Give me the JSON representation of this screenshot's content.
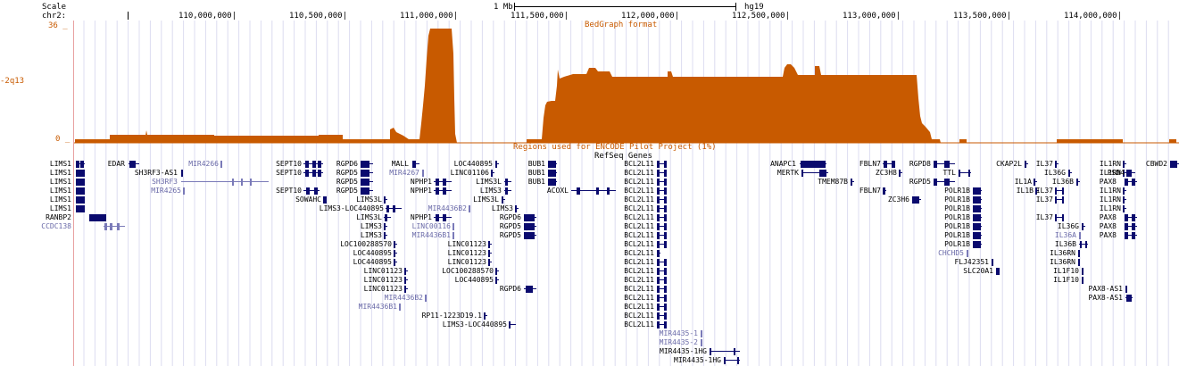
{
  "colors": {
    "bedgraph": "#c85a00",
    "gene": "#0a0a6e",
    "gene_light": "#6a6aa8",
    "grid": "#dcdcf0",
    "divider": "#e8a0a0"
  },
  "header": {
    "scale_label": "Scale",
    "chrom_label": "chr2:",
    "scale_value": "1 Mb",
    "assembly": "hg19"
  },
  "coords": [
    "110,000,000|",
    "110,500,000|",
    "111,000,000|",
    "111,500,000|",
    "112,000,000|",
    "112,500,000|",
    "113,000,000|",
    "113,500,000|",
    "114,000,000|"
  ],
  "tracks": {
    "bedgraph": {
      "title": "BedGraph format",
      "ymax": "36 _",
      "ymin": "0 _",
      "side_label": "-2q13"
    },
    "encode": {
      "title": "Regions used for ENCODE Pilot Project (1%)"
    },
    "refseq": {
      "title": "RefSeq Genes"
    }
  },
  "genes": [
    {
      "name": "LIMS1",
      "light": false
    },
    {
      "name": "LIMS1",
      "light": false
    },
    {
      "name": "LIMS1",
      "light": false
    },
    {
      "name": "LIMS1",
      "light": false
    },
    {
      "name": "LIMS1",
      "light": false
    },
    {
      "name": "LIMS1",
      "light": false
    },
    {
      "name": "RANBP2",
      "light": false
    },
    {
      "name": "CCDC138",
      "light": true
    },
    {
      "name": "EDAR",
      "light": false
    },
    {
      "name": "SH3RF3-AS1",
      "light": false
    },
    {
      "name": "SH3RF3",
      "light": true
    },
    {
      "name": "MIR4265",
      "light": true
    },
    {
      "name": "MIR4266",
      "light": true
    },
    {
      "name": "SEPT10",
      "light": false
    },
    {
      "name": "SEPT10",
      "light": false
    },
    {
      "name": "SEPT10",
      "light": false
    },
    {
      "name": "SOWAHC",
      "light": false
    },
    {
      "name": "RGPD6",
      "light": false
    },
    {
      "name": "RGPD5",
      "light": false
    },
    {
      "name": "RGPD5",
      "light": false
    },
    {
      "name": "RGPD5",
      "light": false
    },
    {
      "name": "LIMS3L",
      "light": false
    },
    {
      "name": "LIMS3-LOC440895",
      "light": false
    },
    {
      "name": "LIMS3L",
      "light": false
    },
    {
      "name": "LIMS3",
      "light": false
    },
    {
      "name": "LIMS3",
      "light": false
    },
    {
      "name": "LOC100288570",
      "light": false
    },
    {
      "name": "LOC440895",
      "light": false
    },
    {
      "name": "LOC440895",
      "light": false
    },
    {
      "name": "LINC01123",
      "light": false
    },
    {
      "name": "LINC01123",
      "light": false
    },
    {
      "name": "LINC01123",
      "light": false
    },
    {
      "name": "MIR4436B2",
      "light": true
    },
    {
      "name": "MIR4436B1",
      "light": true
    },
    {
      "name": "RP11-1223D19.1",
      "light": false
    },
    {
      "name": "LIMS3-LOC440895",
      "light": false
    },
    {
      "name": "MALL",
      "light": false
    },
    {
      "name": "MIR4267",
      "light": true
    },
    {
      "name": "NPHP1",
      "light": false
    },
    {
      "name": "NPHP1",
      "light": false
    },
    {
      "name": "MIR4436B2",
      "light": true
    },
    {
      "name": "NPHP1",
      "light": false
    },
    {
      "name": "LINC00116",
      "light": true
    },
    {
      "name": "MIR4436B1",
      "light": true
    },
    {
      "name": "LOC440895",
      "light": false
    },
    {
      "name": "LINC01106",
      "light": false
    },
    {
      "name": "LIMS3L",
      "light": false
    },
    {
      "name": "LIMS3",
      "light": false
    },
    {
      "name": "LIMS3L",
      "light": false
    },
    {
      "name": "LIMS3",
      "light": false
    },
    {
      "name": "RGPD6",
      "light": false
    },
    {
      "name": "RGPD5",
      "light": false
    },
    {
      "name": "RGPD5",
      "light": false
    },
    {
      "name": "LINC01123",
      "light": false
    },
    {
      "name": "LINC01123",
      "light": false
    },
    {
      "name": "LINC01123",
      "light": false
    },
    {
      "name": "LOC100288570",
      "light": false
    },
    {
      "name": "LOC440895",
      "light": false
    },
    {
      "name": "RGPD6",
      "light": false
    },
    {
      "name": "BUB1",
      "light": false
    },
    {
      "name": "BUB1",
      "light": false
    },
    {
      "name": "BUB1",
      "light": false
    },
    {
      "name": "ACOXL",
      "light": false
    },
    {
      "name": "BCL2L11",
      "light": false
    },
    {
      "name": "BCL2L11",
      "light": false
    },
    {
      "name": "BCL2L11",
      "light": false
    },
    {
      "name": "BCL2L11",
      "light": false
    },
    {
      "name": "BCL2L11",
      "light": false
    },
    {
      "name": "BCL2L11",
      "light": false
    },
    {
      "name": "BCL2L11",
      "light": false
    },
    {
      "name": "BCL2L11",
      "light": false
    },
    {
      "name": "BCL2L11",
      "light": false
    },
    {
      "name": "BCL2L11",
      "light": false
    },
    {
      "name": "BCL2L11",
      "light": false
    },
    {
      "name": "BCL2L11",
      "light": false
    },
    {
      "name": "BCL2L11",
      "light": false
    },
    {
      "name": "BCL2L11",
      "light": false
    },
    {
      "name": "BCL2L11",
      "light": false
    },
    {
      "name": "BCL2L11",
      "light": false
    },
    {
      "name": "BCL2L11",
      "light": false
    },
    {
      "name": "BCL2L11",
      "light": false
    },
    {
      "name": "BCL2L11",
      "light": false
    },
    {
      "name": "MIR4435-1",
      "light": true
    },
    {
      "name": "MIR4435-2",
      "light": true
    },
    {
      "name": "MIR4435-1HG",
      "light": false
    },
    {
      "name": "MIR4435-1HG",
      "light": false
    },
    {
      "name": "ANAPC1",
      "light": false
    },
    {
      "name": "MERTK",
      "light": false
    },
    {
      "name": "TMEM87B",
      "light": false
    },
    {
      "name": "FBLN7",
      "light": false
    },
    {
      "name": "FBLN7",
      "light": false
    },
    {
      "name": "ZC3H8",
      "light": false
    },
    {
      "name": "ZC3H6",
      "light": false
    },
    {
      "name": "RGPD8",
      "light": false
    },
    {
      "name": "RGPD5",
      "light": false
    },
    {
      "name": "TTL",
      "light": false
    },
    {
      "name": "POLR1B",
      "light": false
    },
    {
      "name": "POLR1B",
      "light": false
    },
    {
      "name": "POLR1B",
      "light": false
    },
    {
      "name": "POLR1B",
      "light": false
    },
    {
      "name": "POLR1B",
      "light": false
    },
    {
      "name": "POLR1B",
      "light": false
    },
    {
      "name": "POLR1B",
      "light": false
    },
    {
      "name": "CHCHD5",
      "light": true
    },
    {
      "name": "FLJ42351",
      "light": false
    },
    {
      "name": "SLC20A1",
      "light": false
    },
    {
      "name": "CKAP2L",
      "light": false
    },
    {
      "name": "IL1A",
      "light": false
    },
    {
      "name": "IL1B",
      "light": false
    },
    {
      "name": "IL37",
      "light": false
    },
    {
      "name": "IL37",
      "light": false
    },
    {
      "name": "IL37",
      "light": false
    },
    {
      "name": "IL37",
      "light": false
    },
    {
      "name": "IL36G",
      "light": false
    },
    {
      "name": "IL36G",
      "light": false
    },
    {
      "name": "IL36B",
      "light": false
    },
    {
      "name": "IL36A",
      "light": true
    },
    {
      "name": "IL36B",
      "light": false
    },
    {
      "name": "IL36RN",
      "light": false
    },
    {
      "name": "IL36RN",
      "light": false
    },
    {
      "name": "IL1F10",
      "light": false
    },
    {
      "name": "IL1F10",
      "light": false
    },
    {
      "name": "IL1RN",
      "light": false
    },
    {
      "name": "IL1RN",
      "light": false
    },
    {
      "name": "IL1RN",
      "light": false
    },
    {
      "name": "IL1RN",
      "light": false
    },
    {
      "name": "IL1RN",
      "light": false
    },
    {
      "name": "PSD4",
      "light": false
    },
    {
      "name": "PAX8",
      "light": false
    },
    {
      "name": "PAX8",
      "light": false
    },
    {
      "name": "PAX8",
      "light": false
    },
    {
      "name": "PAX8",
      "light": false
    },
    {
      "name": "PAX8-AS1",
      "light": false
    },
    {
      "name": "PAX8-AS1",
      "light": false
    },
    {
      "name": "CBWD2",
      "light": false
    }
  ]
}
